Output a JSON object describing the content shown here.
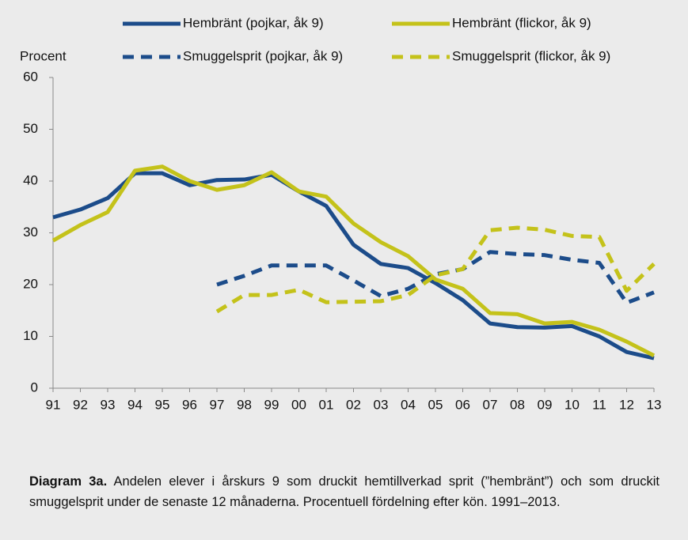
{
  "chart_data": {
    "type": "line",
    "y_label": "Procent",
    "categories": [
      "91",
      "92",
      "93",
      "94",
      "95",
      "96",
      "97",
      "98",
      "99",
      "00",
      "01",
      "02",
      "03",
      "04",
      "05",
      "06",
      "07",
      "08",
      "09",
      "10",
      "11",
      "12",
      "13"
    ],
    "series": [
      {
        "name": "Hembränt (pojkar, åk 9)",
        "color": "#1c4c8a",
        "dash": false,
        "values": [
          33,
          34.5,
          36.7,
          41.5,
          41.5,
          39.2,
          40.2,
          40.3,
          41.2,
          38,
          35.2,
          27.7,
          24,
          23.2,
          20.3,
          17,
          12.5,
          11.8,
          11.7,
          12,
          10,
          7,
          5.8
        ]
      },
      {
        "name": "Hembränt (flickor, åk 9)",
        "color": "#c4c21a",
        "dash": false,
        "values": [
          28.5,
          31.5,
          34,
          42,
          42.8,
          40,
          38.3,
          39.2,
          41.7,
          38,
          37,
          31.8,
          28.2,
          25.5,
          21,
          19.2,
          14.5,
          14.3,
          12.5,
          12.8,
          11.3,
          9,
          6.3
        ]
      },
      {
        "name": "Smuggelsprit (pojkar, åk 9)",
        "color": "#1c4c8a",
        "dash": true,
        "values": [
          null,
          null,
          null,
          null,
          null,
          null,
          20,
          21.7,
          23.7,
          23.7,
          23.7,
          20.8,
          17.8,
          19.2,
          22,
          23,
          26.3,
          25.9,
          25.7,
          24.8,
          24.2,
          16.5,
          18.5
        ]
      },
      {
        "name": "Smuggelsprit (flickor, åk 9)",
        "color": "#c4c21a",
        "dash": true,
        "values": [
          null,
          null,
          null,
          null,
          null,
          null,
          14.8,
          18,
          18,
          19,
          16.6,
          16.7,
          16.8,
          18,
          21.8,
          23,
          30.5,
          31,
          30.6,
          29.4,
          29.2,
          18.8,
          24
        ]
      }
    ],
    "ylim": [
      0,
      60
    ],
    "yticks": [
      0,
      10,
      20,
      30,
      40,
      50,
      60
    ],
    "grid": false,
    "caption_label": "Diagram 3a.",
    "caption_text": "Andelen elever i årskurs 9 som druckit hemtillverkad sprit (”hembränt”) och som druckit smuggelsprit under de senaste 12 månaderna. Procentuell fördelning efter kön. 1991–2013."
  }
}
